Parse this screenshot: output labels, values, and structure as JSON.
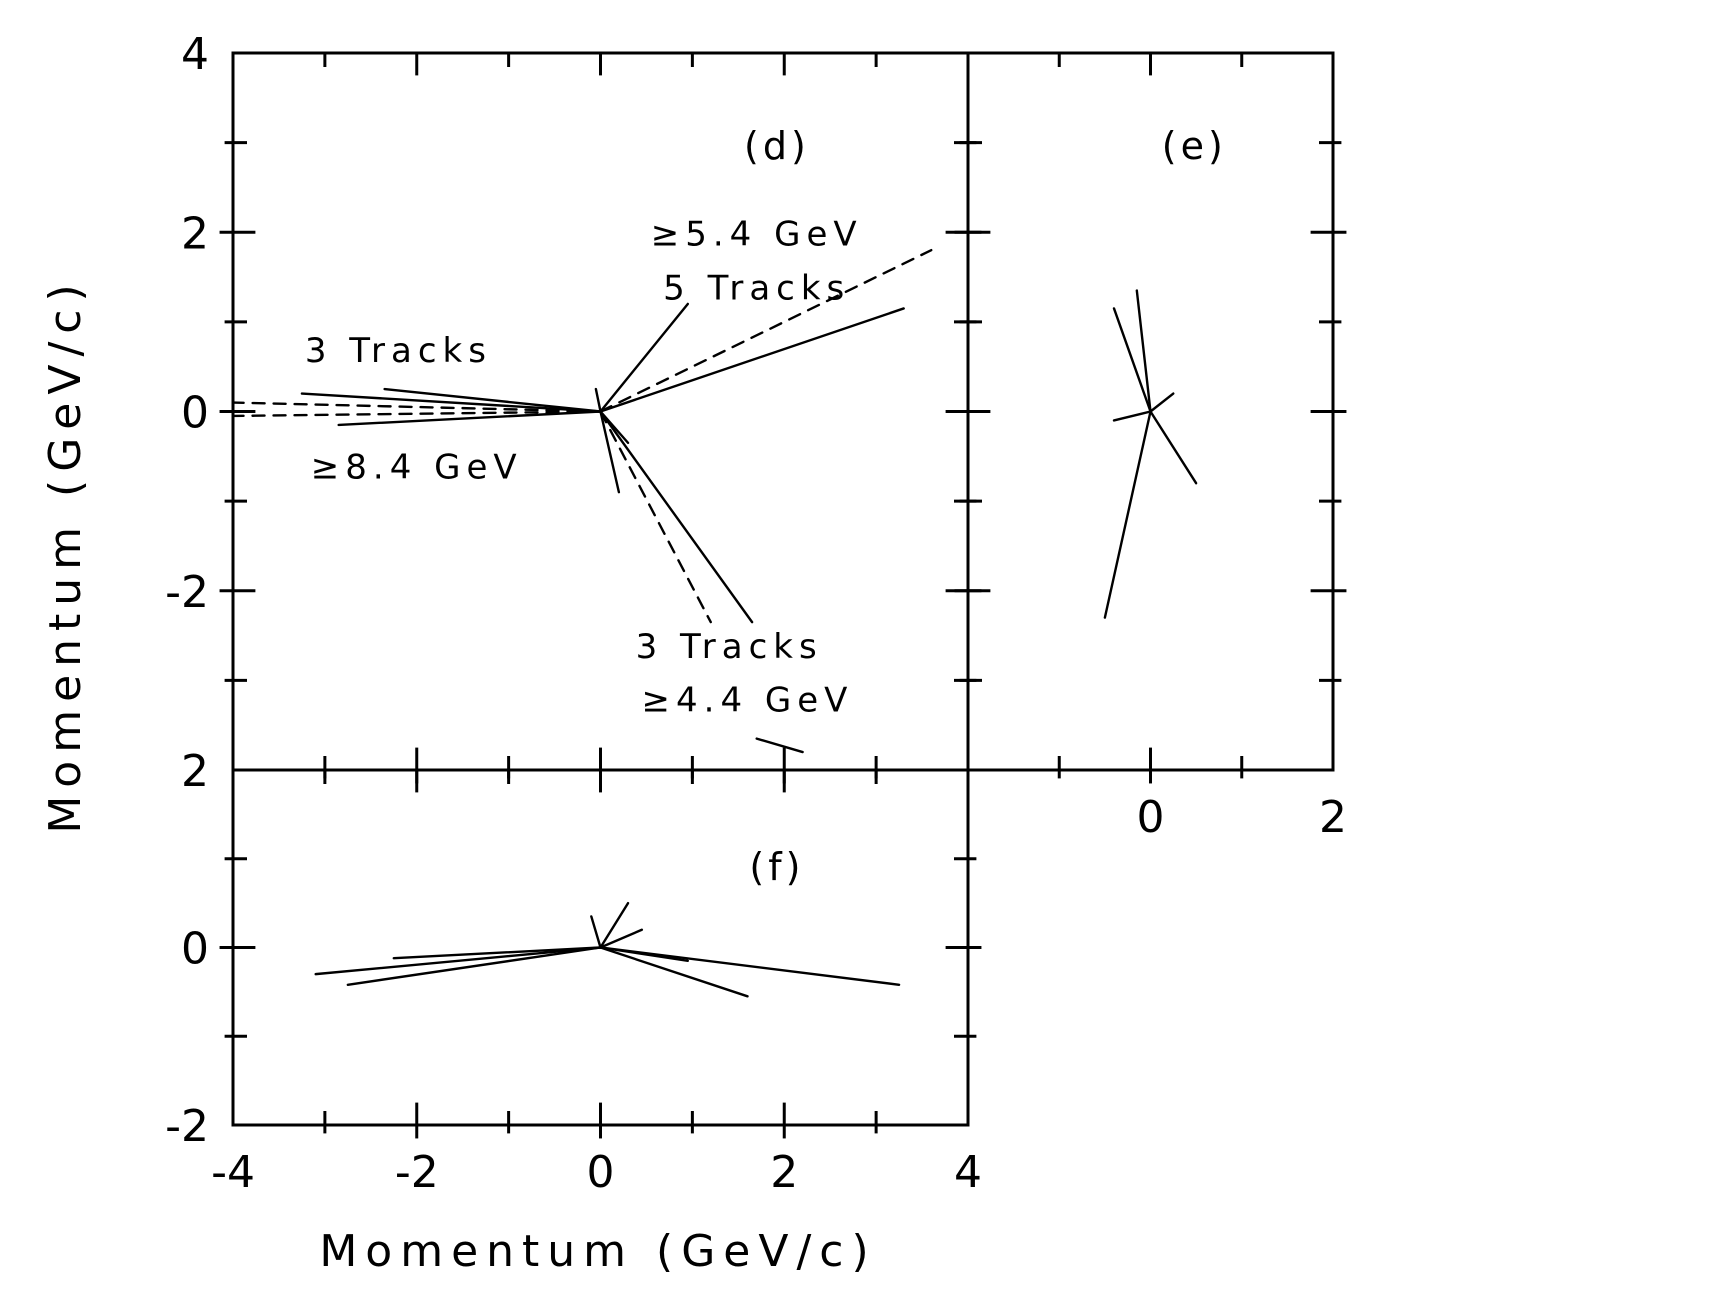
{
  "chart_data": [
    {
      "type": "line",
      "panel": "d",
      "panel_label": "(d)",
      "xlim": [
        -4,
        4
      ],
      "ylim": [
        -4,
        4
      ],
      "y_ticks_labeled": [
        {
          "value": 4,
          "label": "4"
        },
        {
          "value": 2,
          "label": "2"
        },
        {
          "value": 0,
          "label": "0"
        },
        {
          "value": -2,
          "label": "-2"
        }
      ],
      "ylabel": "Momentum  (GeV/c)",
      "annotations": [
        {
          "text": "≥5.4 GeV",
          "x": 1.7,
          "y": 1.85
        },
        {
          "text": "5  Tracks",
          "x": 1.7,
          "y": 1.25
        },
        {
          "text": "3  Tracks",
          "x": -2.2,
          "y": 0.55
        },
        {
          "text": "≥8.4  GeV",
          "x": -2.0,
          "y": -0.75
        },
        {
          "text": "3  Tracks",
          "x": 1.4,
          "y": -2.75
        },
        {
          "text": "≥4.4  GeV",
          "x": 1.6,
          "y": -3.35
        }
      ],
      "segments": [
        {
          "x": [
            0,
            3.3
          ],
          "y": [
            0,
            1.15
          ],
          "style": "solid"
        },
        {
          "x": [
            0,
            0.95
          ],
          "y": [
            0,
            1.2
          ],
          "style": "solid"
        },
        {
          "x": [
            0,
            3.6
          ],
          "y": [
            0,
            1.8
          ],
          "style": "dashed"
        },
        {
          "x": [
            0,
            -3.25
          ],
          "y": [
            0,
            0.2
          ],
          "style": "solid"
        },
        {
          "x": [
            0,
            -2.35
          ],
          "y": [
            0,
            0.25
          ],
          "style": "solid"
        },
        {
          "x": [
            0,
            -2.85
          ],
          "y": [
            0,
            -0.15
          ],
          "style": "solid"
        },
        {
          "x": [
            0,
            -4.0
          ],
          "y": [
            0,
            0.1
          ],
          "style": "dashed"
        },
        {
          "x": [
            0,
            -4.0
          ],
          "y": [
            0,
            -0.05
          ],
          "style": "dashed"
        },
        {
          "x": [
            0,
            1.65
          ],
          "y": [
            0,
            -2.35
          ],
          "style": "solid"
        },
        {
          "x": [
            0,
            0.2
          ],
          "y": [
            0,
            -0.9
          ],
          "style": "solid"
        },
        {
          "x": [
            0,
            1.2
          ],
          "y": [
            0,
            -2.35
          ],
          "style": "dashed"
        },
        {
          "x": [
            0,
            0.3
          ],
          "y": [
            0,
            -0.35
          ],
          "style": "solid"
        },
        {
          "x": [
            0,
            -0.05
          ],
          "y": [
            0,
            0.25
          ],
          "style": "solid"
        },
        {
          "x": [
            1.7,
            2.2
          ],
          "y": [
            -3.65,
            -3.8
          ],
          "style": "solid"
        }
      ]
    },
    {
      "type": "line",
      "panel": "e",
      "panel_label": "(e)",
      "xlim": [
        -2,
        2
      ],
      "ylim": [
        -4,
        4
      ],
      "x_ticks_labeled": [
        {
          "value": 0,
          "label": "0"
        },
        {
          "value": 2,
          "label": "2"
        }
      ],
      "segments": [
        {
          "x": [
            0,
            -0.4
          ],
          "y": [
            0,
            1.15
          ],
          "style": "solid"
        },
        {
          "x": [
            0,
            -0.15
          ],
          "y": [
            0,
            1.35
          ],
          "style": "solid"
        },
        {
          "x": [
            0,
            0.5
          ],
          "y": [
            0,
            -0.8
          ],
          "style": "solid"
        },
        {
          "x": [
            0,
            -0.5
          ],
          "y": [
            0,
            -2.3
          ],
          "style": "solid"
        },
        {
          "x": [
            0,
            0.25
          ],
          "y": [
            0,
            0.2
          ],
          "style": "solid"
        },
        {
          "x": [
            0,
            -0.4
          ],
          "y": [
            0,
            -0.1
          ],
          "style": "solid"
        }
      ]
    },
    {
      "type": "line",
      "panel": "f",
      "panel_label": "(f)",
      "xlim": [
        -4,
        4
      ],
      "ylim": [
        -2,
        2
      ],
      "x_ticks_labeled": [
        {
          "value": -4,
          "label": "-4"
        },
        {
          "value": -2,
          "label": "-2"
        },
        {
          "value": 0,
          "label": "0"
        },
        {
          "value": 2,
          "label": "2"
        },
        {
          "value": 4,
          "label": "4"
        }
      ],
      "y_ticks_labeled": [
        {
          "value": 2,
          "label": "2"
        },
        {
          "value": 0,
          "label": "0"
        },
        {
          "value": -2,
          "label": "-2"
        }
      ],
      "xlabel": "Momentum  (GeV/c)",
      "segments": [
        {
          "x": [
            0,
            3.25
          ],
          "y": [
            0,
            -0.42
          ],
          "style": "solid"
        },
        {
          "x": [
            0,
            -3.1
          ],
          "y": [
            0,
            -0.3
          ],
          "style": "solid"
        },
        {
          "x": [
            0,
            -2.75
          ],
          "y": [
            0,
            -0.42
          ],
          "style": "solid"
        },
        {
          "x": [
            0,
            -2.25
          ],
          "y": [
            0,
            -0.12
          ],
          "style": "solid"
        },
        {
          "x": [
            0,
            1.6
          ],
          "y": [
            0,
            -0.55
          ],
          "style": "solid"
        },
        {
          "x": [
            0,
            0.3
          ],
          "y": [
            0,
            0.5
          ],
          "style": "solid"
        },
        {
          "x": [
            0,
            0.45
          ],
          "y": [
            0,
            0.2
          ],
          "style": "solid"
        },
        {
          "x": [
            0,
            0.95
          ],
          "y": [
            0,
            -0.15
          ],
          "style": "solid"
        },
        {
          "x": [
            0,
            -0.1
          ],
          "y": [
            0,
            0.35
          ],
          "style": "solid"
        }
      ]
    }
  ]
}
